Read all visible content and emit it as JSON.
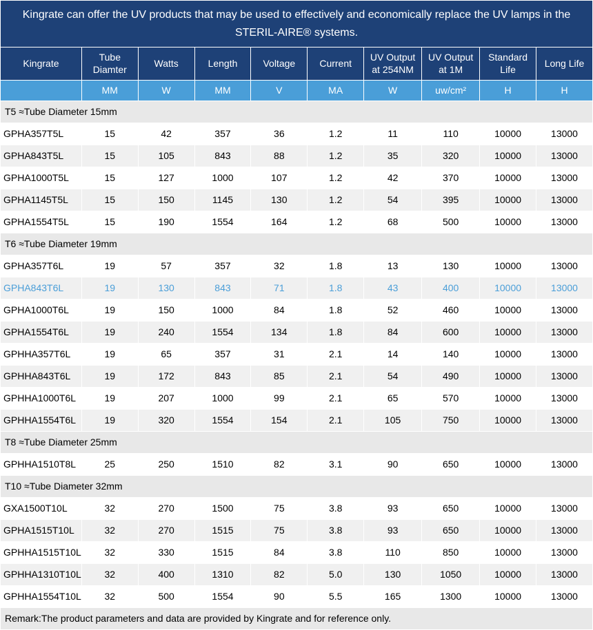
{
  "title": "Kingrate can offer the UV products that may be used to effectively and economically replace the UV lamps in the STERIL-AIRE® systems.",
  "headers": [
    "Kingrate",
    "Tube Diamter",
    "Watts",
    "Length",
    "Voltage",
    "Current",
    "UV Output at 254NM",
    "UV Output at  1M",
    "Standard Life",
    "Long Life"
  ],
  "units": [
    "",
    "MM",
    "W",
    "MM",
    "V",
    "MA",
    "W",
    "uw/cm²",
    "H",
    "H"
  ],
  "remark": "Remark:The product parameters and data are provided by Kingrate and for reference only.",
  "colors": {
    "header_bg": "#1e4177",
    "units_bg": "#4a9ed8",
    "section_bg": "#e8e8e8",
    "row_alt_bg": "#f0f0f0",
    "highlight_text": "#4a9ed8"
  },
  "sections": [
    {
      "label": "T5 ≈Tube Diameter 15mm",
      "rows": [
        {
          "cells": [
            "GPHA357T5L",
            "15",
            "42",
            "357",
            "36",
            "1.2",
            "11",
            "110",
            "10000",
            "13000"
          ]
        },
        {
          "cells": [
            "GPHA843T5L",
            "15",
            "105",
            "843",
            "88",
            "1.2",
            "35",
            "320",
            "10000",
            "13000"
          ]
        },
        {
          "cells": [
            "GPHA1000T5L",
            "15",
            "127",
            "1000",
            "107",
            "1.2",
            "42",
            "370",
            "10000",
            "13000"
          ]
        },
        {
          "cells": [
            "GPHA1145T5L",
            "15",
            "150",
            "1145",
            "130",
            "1.2",
            "54",
            "395",
            "10000",
            "13000"
          ]
        },
        {
          "cells": [
            "GPHA1554T5L",
            "15",
            "190",
            "1554",
            "164",
            "1.2",
            "68",
            "500",
            "10000",
            "13000"
          ]
        }
      ]
    },
    {
      "label": "T6 ≈Tube Diameter 19mm",
      "rows": [
        {
          "cells": [
            "GPHA357T6L",
            "19",
            "57",
            "357",
            "32",
            "1.8",
            "13",
            "130",
            "10000",
            "13000"
          ]
        },
        {
          "cells": [
            "GPHA843T6L",
            "19",
            "130",
            "843",
            "71",
            "1.8",
            "43",
            "400",
            "10000",
            "13000"
          ],
          "highlight": true
        },
        {
          "cells": [
            "GPHA1000T6L",
            "19",
            "150",
            "1000",
            "84",
            "1.8",
            "52",
            "460",
            "10000",
            "13000"
          ]
        },
        {
          "cells": [
            "GPHA1554T6L",
            "19",
            "240",
            "1554",
            "134",
            "1.8",
            "84",
            "600",
            "10000",
            "13000"
          ]
        },
        {
          "cells": [
            "GPHHA357T6L",
            "19",
            "65",
            "357",
            "31",
            "2.1",
            "14",
            "140",
            "10000",
            "13000"
          ]
        },
        {
          "cells": [
            "GPHHA843T6L",
            "19",
            "172",
            "843",
            "85",
            "2.1",
            "54",
            "490",
            "10000",
            "13000"
          ]
        },
        {
          "cells": [
            "GPHHA1000T6L",
            "19",
            "207",
            "1000",
            "99",
            "2.1",
            "65",
            "570",
            "10000",
            "13000"
          ]
        },
        {
          "cells": [
            "GPHHA1554T6L",
            "19",
            "320",
            "1554",
            "154",
            "2.1",
            "105",
            "750",
            "10000",
            "13000"
          ]
        }
      ]
    },
    {
      "label": "T8 ≈Tube Diameter 25mm",
      "rows": [
        {
          "cells": [
            "GPHHA1510T8L",
            "25",
            "250",
            "1510",
            "82",
            "3.1",
            "90",
            "650",
            "10000",
            "13000"
          ]
        }
      ]
    },
    {
      "label": "T10 ≈Tube Diameter 32mm",
      "rows": [
        {
          "cells": [
            "GXA1500T10L",
            "32",
            "270",
            "1500",
            "75",
            "3.8",
            "93",
            "650",
            "10000",
            "13000"
          ]
        },
        {
          "cells": [
            "GPHA1515T10L",
            "32",
            "270",
            "1515",
            "75",
            "3.8",
            "93",
            "650",
            "10000",
            "13000"
          ]
        },
        {
          "cells": [
            "GPHHA1515T10L",
            "32",
            "330",
            "1515",
            "84",
            "3.8",
            "110",
            "850",
            "10000",
            "13000"
          ]
        },
        {
          "cells": [
            "GPHHA1310T10L",
            "32",
            "400",
            "1310",
            "82",
            "5.0",
            "130",
            "1050",
            "10000",
            "13000"
          ]
        },
        {
          "cells": [
            "GPHHA1554T10L",
            "32",
            "500",
            "1554",
            "90",
            "5.5",
            "165",
            "1300",
            "10000",
            "13000"
          ]
        }
      ]
    }
  ]
}
